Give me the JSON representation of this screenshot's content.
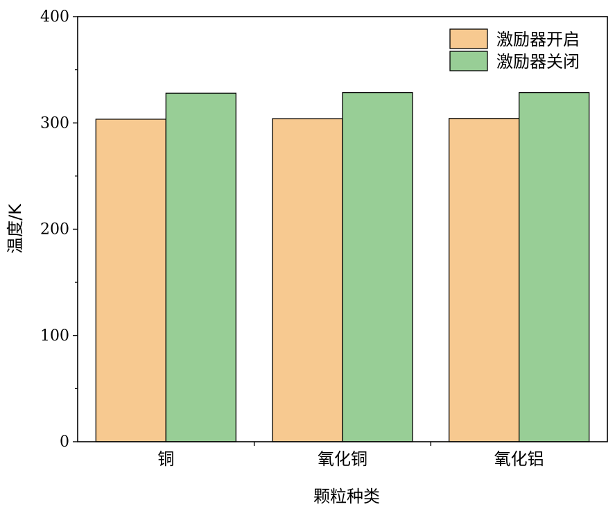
{
  "chart_data": {
    "type": "bar",
    "title": "",
    "xlabel": "颗粒种类",
    "ylabel": "温度/K",
    "categories": [
      "铜",
      "氧化铜",
      "氧化铝"
    ],
    "series": [
      {
        "name": "激励器开启",
        "values": [
          303.5,
          304,
          304.2
        ],
        "color": "#F7C990"
      },
      {
        "name": "激励器关闭",
        "values": [
          328,
          328.5,
          328.5
        ],
        "color": "#98CE96"
      }
    ],
    "ylim": [
      0,
      400
    ],
    "yticks": [
      "0",
      "100",
      "200",
      "300",
      "400"
    ],
    "grid": false,
    "legend_position": "top-right"
  }
}
